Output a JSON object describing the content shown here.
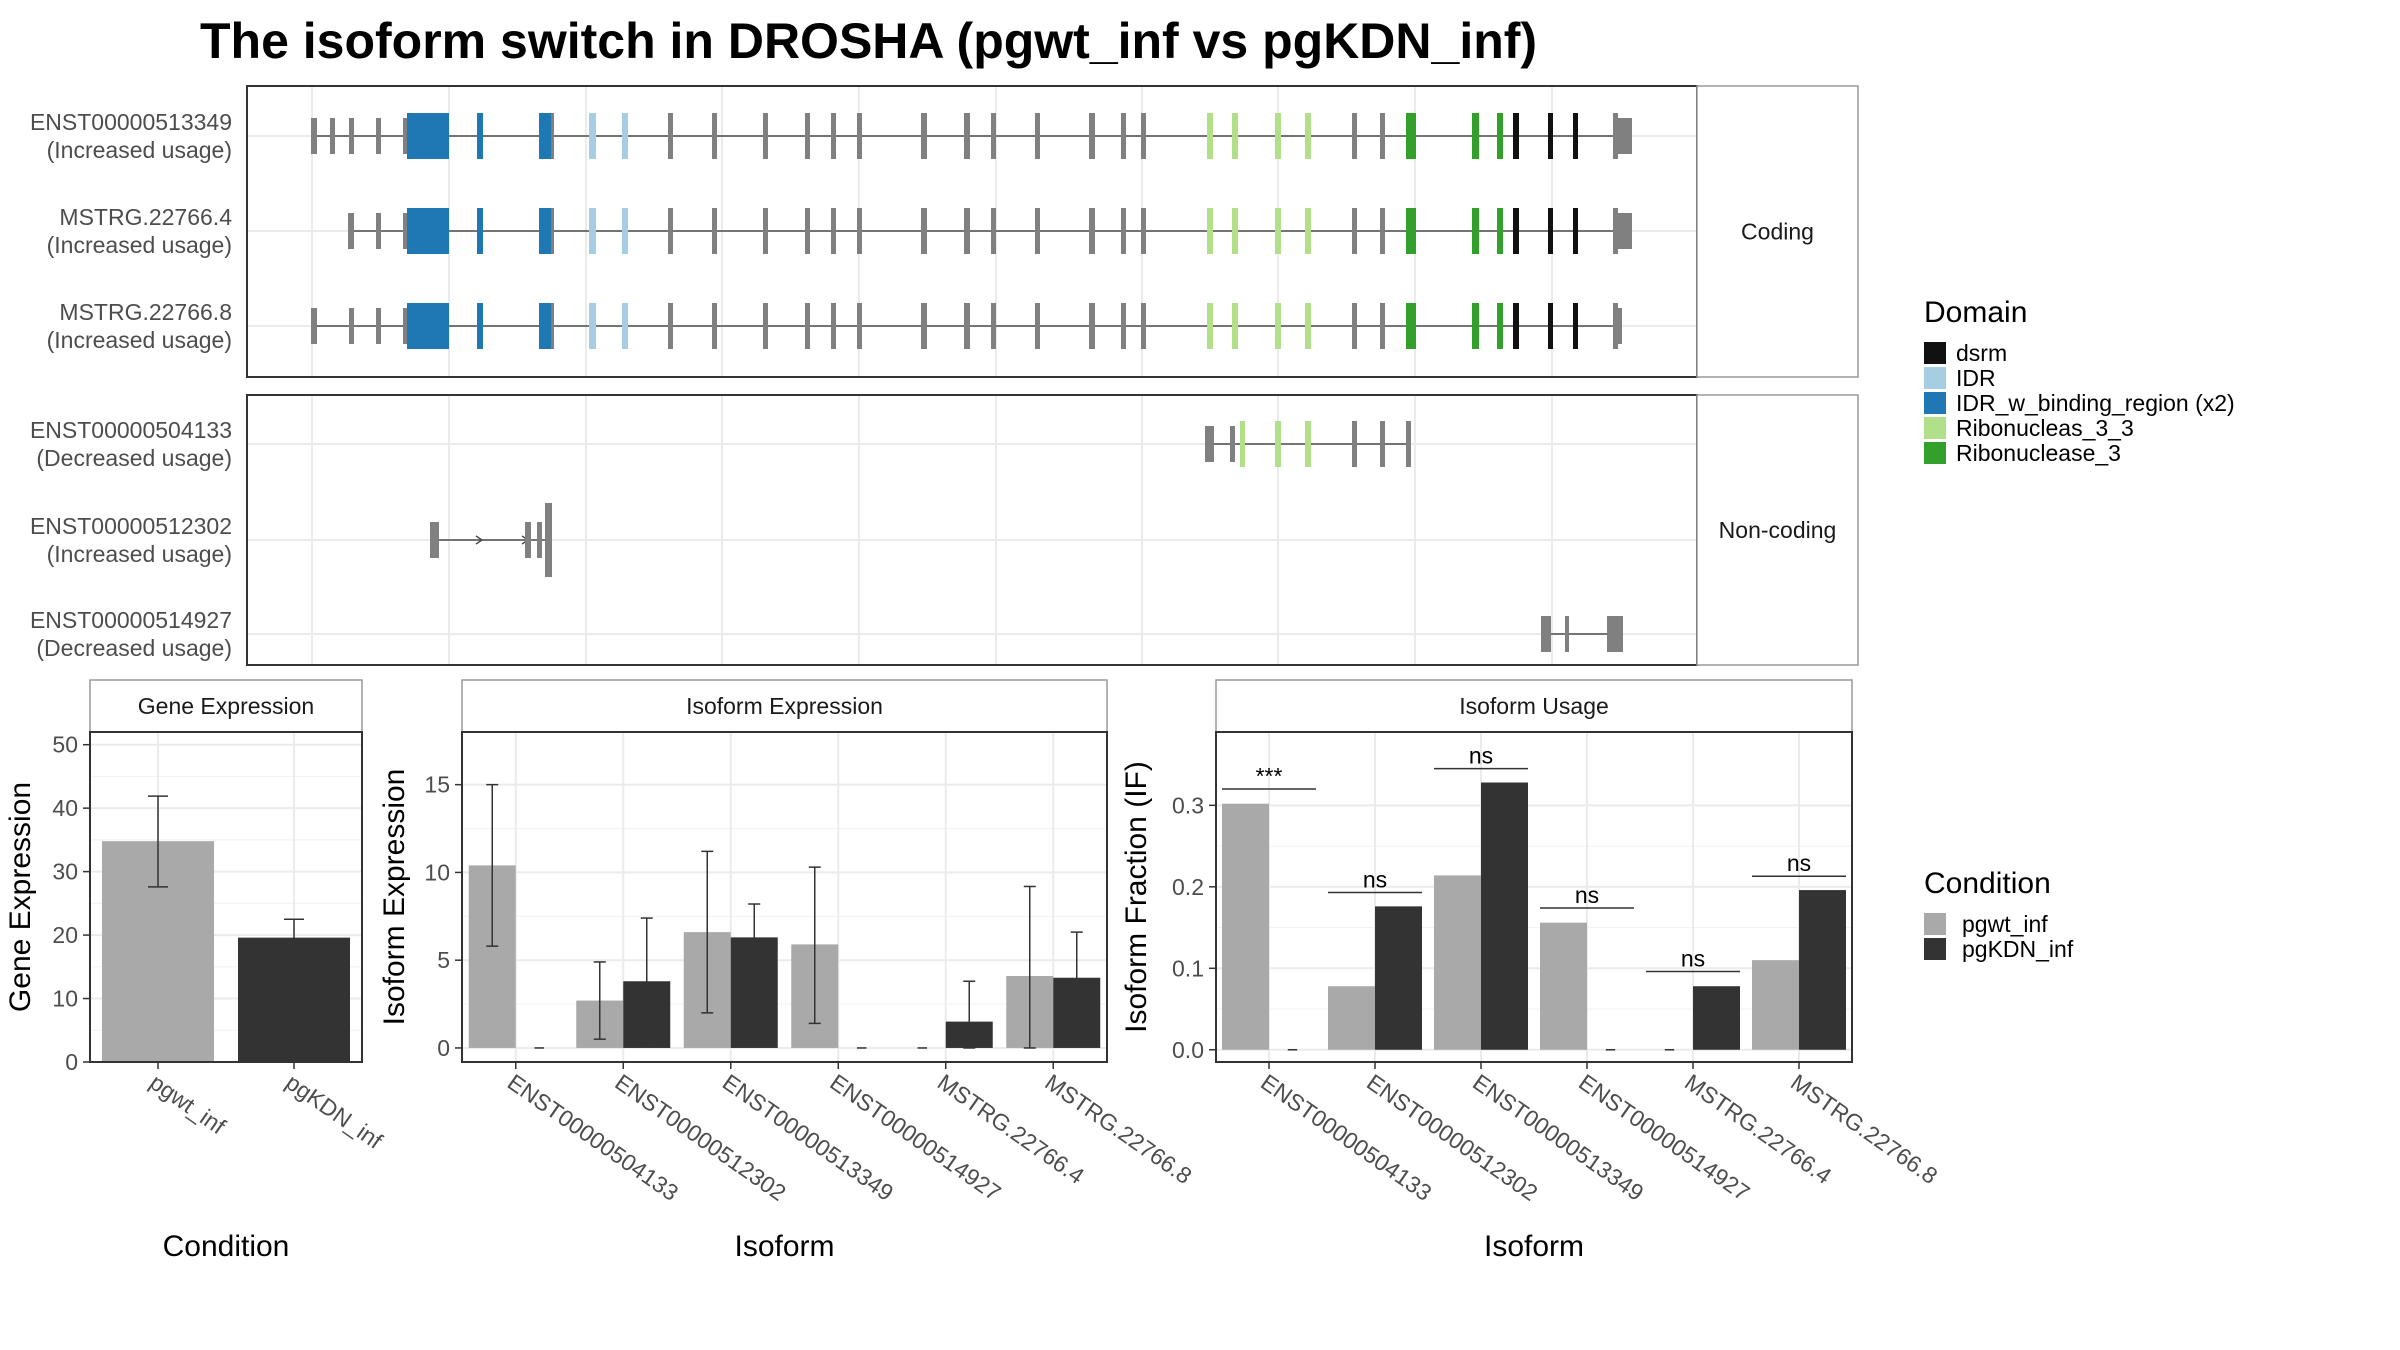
{
  "title": "The isoform switch in DROSHA (pgwt_inf vs pgKDN_inf)",
  "colors": {
    "grey_exon": "#808080",
    "intron": "#4d4d4d",
    "panel_border": "#333333",
    "grid": "#ebebeb",
    "strip_bg": "#ffffff",
    "pgwt_inf": "#a9a9a9",
    "pgKDN_inf": "#333333"
  },
  "isoform_structure": {
    "panels": [
      {
        "label": "Coding",
        "transcripts": [
          {
            "id": "ENST00000513349",
            "usage": "(Increased usage)"
          },
          {
            "id": "MSTRG.22766.4",
            "usage": "(Increased usage)"
          },
          {
            "id": "MSTRG.22766.8",
            "usage": "(Increased usage)"
          }
        ]
      },
      {
        "label": "Non-coding",
        "transcripts": [
          {
            "id": "ENST00000504133",
            "usage": "(Decreased usage)"
          },
          {
            "id": "ENST00000512302",
            "usage": "(Increased usage)"
          },
          {
            "id": "ENST00000514927",
            "usage": "(Decreased usage)"
          }
        ]
      }
    ]
  },
  "domain_legend": {
    "title": "Domain",
    "items": [
      {
        "label": "dsrm",
        "color": "#111111"
      },
      {
        "label": "IDR",
        "color": "#a6cee3"
      },
      {
        "label": "IDR_w_binding_region (x2)",
        "color": "#1f78b4"
      },
      {
        "label": "Ribonucleas_3_3",
        "color": "#b2df8a"
      },
      {
        "label": "Ribonuclease_3",
        "color": "#33a02c"
      }
    ]
  },
  "condition_legend": {
    "title": "Condition",
    "items": [
      {
        "label": "pgwt_inf",
        "color": "#a9a9a9"
      },
      {
        "label": "pgKDN_inf",
        "color": "#333333"
      }
    ]
  },
  "chart_data": [
    {
      "type": "bar",
      "strip": "Gene Expression",
      "xlabel": "Condition",
      "ylabel": "Gene Expression",
      "ylim": [
        0,
        52
      ],
      "yticks": [
        0,
        10,
        20,
        30,
        40,
        50
      ],
      "categories": [
        "pgwt_inf",
        "pgKDN_inf"
      ],
      "values": [
        34.8,
        19.6
      ],
      "error_low": [
        27.6,
        16.7
      ],
      "error_high": [
        41.9,
        22.5
      ]
    },
    {
      "type": "bar",
      "strip": "Isoform Expression",
      "xlabel": "Isoform",
      "ylabel": "Isoform Expression",
      "ylim": [
        -0.8,
        18
      ],
      "yticks": [
        0,
        5,
        10,
        15
      ],
      "categories": [
        "ENST00000504133",
        "ENST00000512302",
        "ENST00000513349",
        "ENST00000514927",
        "MSTRG.22766.4",
        "MSTRG.22766.8"
      ],
      "series": [
        {
          "name": "pgwt_inf",
          "values": [
            10.4,
            2.7,
            6.6,
            5.9,
            0.0,
            4.1
          ],
          "error_low": [
            5.8,
            0.5,
            2.0,
            1.4,
            0.0,
            0.0
          ],
          "error_high": [
            15.0,
            4.9,
            11.2,
            10.3,
            0.0,
            9.2
          ]
        },
        {
          "name": "pgKDN_inf",
          "values": [
            0.0,
            3.8,
            6.3,
            0.0,
            1.5,
            4.0
          ],
          "error_low": [
            0.0,
            0.2,
            4.3,
            0.0,
            0.0,
            1.3
          ],
          "error_high": [
            0.0,
            7.4,
            8.2,
            0.0,
            3.8,
            6.6
          ]
        }
      ]
    },
    {
      "type": "bar",
      "strip": "Isoform Usage",
      "xlabel": "Isoform",
      "ylabel": "Isoform Fraction (IF)",
      "ylim": [
        -0.015,
        0.39
      ],
      "yticks": [
        0.0,
        0.1,
        0.2,
        0.3
      ],
      "ytick_labels": [
        "0.0",
        "0.1",
        "0.2",
        "0.3"
      ],
      "categories": [
        "ENST00000504133",
        "ENST00000512302",
        "ENST00000513349",
        "ENST00000514927",
        "MSTRG.22766.4",
        "MSTRG.22766.8"
      ],
      "series": [
        {
          "name": "pgwt_inf",
          "values": [
            0.302,
            0.078,
            0.214,
            0.156,
            0.0,
            0.11
          ]
        },
        {
          "name": "pgKDN_inf",
          "values": [
            0.0,
            0.176,
            0.328,
            0.0,
            0.078,
            0.196
          ]
        }
      ],
      "significance": [
        "***",
        "ns",
        "ns",
        "ns",
        "ns",
        "ns"
      ],
      "significance_y": [
        0.32,
        0.193,
        0.345,
        0.174,
        0.096,
        0.213
      ]
    }
  ]
}
